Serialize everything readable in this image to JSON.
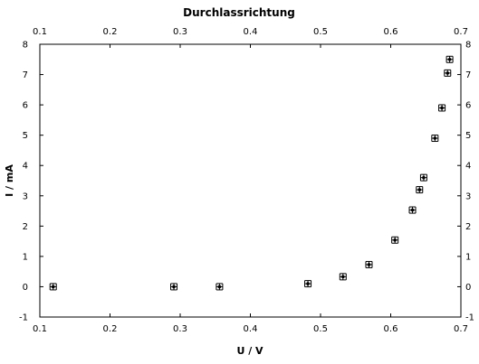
{
  "chart_data": {
    "type": "scatter",
    "title": "Durchlassrichtung",
    "xlabel": "U / V",
    "ylabel": "I / mA",
    "xlim": [
      0.1,
      0.7
    ],
    "ylim": [
      -1,
      8
    ],
    "x_ticks": [
      "0.1",
      "0.2",
      "0.3",
      "0.4",
      "0.5",
      "0.6",
      "0.7"
    ],
    "y_ticks": [
      "-1",
      "0",
      "1",
      "2",
      "3",
      "4",
      "5",
      "6",
      "7",
      "8"
    ],
    "grid": false,
    "error_bars": true,
    "points": [
      {
        "x": 0.119,
        "y": 0.0
      },
      {
        "x": 0.291,
        "y": 0.0
      },
      {
        "x": 0.356,
        "y": 0.0
      },
      {
        "x": 0.482,
        "y": 0.1
      },
      {
        "x": 0.532,
        "y": 0.33
      },
      {
        "x": 0.569,
        "y": 0.73
      },
      {
        "x": 0.606,
        "y": 1.54
      },
      {
        "x": 0.631,
        "y": 2.53
      },
      {
        "x": 0.641,
        "y": 3.2
      },
      {
        "x": 0.647,
        "y": 3.6
      },
      {
        "x": 0.663,
        "y": 4.9
      },
      {
        "x": 0.673,
        "y": 5.9
      },
      {
        "x": 0.681,
        "y": 7.05
      },
      {
        "x": 0.684,
        "y": 7.5
      }
    ]
  }
}
